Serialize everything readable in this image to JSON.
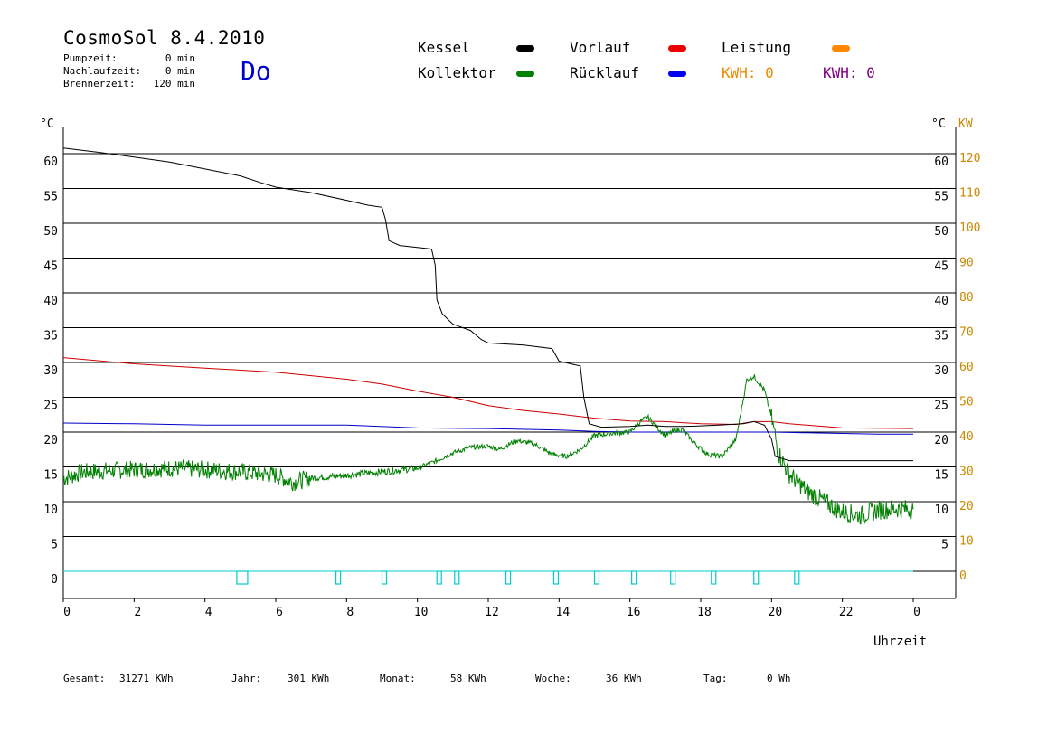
{
  "header": {
    "title": "CosmoSol 8.4.2010",
    "day": "Do",
    "info": [
      {
        "label": "Pumpzeit:",
        "value": "0 min"
      },
      {
        "label": "Nachlaufzeit:",
        "value": "0 min"
      },
      {
        "label": "Brennerzeit:",
        "value": "120 min"
      }
    ]
  },
  "legend": {
    "kessel": "Kessel",
    "vorlauf": "Vorlauf",
    "leistung": "Leistung",
    "kollektor": "Kollektor",
    "ruecklauf": "Rücklauf",
    "kwh1": "KWH: 0",
    "kwh2": "KWH: 0"
  },
  "footer": {
    "gesamt_label": "Gesamt:",
    "gesamt_value": "31271 KWh",
    "jahr_label": "Jahr:",
    "jahr_value": "301 KWh",
    "monat_label": "Monat:",
    "monat_value": "58 KWh",
    "woche_label": "Woche:",
    "woche_value": "36 KWh",
    "tag_label": "Tag:",
    "tag_value": "0 Wh"
  },
  "chart_data": {
    "type": "line",
    "xlabel": "Uhrzeit",
    "ylabel_left": "°C",
    "ylabel_right_1": "°C",
    "ylabel_right_2": "KW",
    "ylim": [
      0,
      60
    ],
    "xlim": [
      0,
      24
    ],
    "x_tick_labels": [
      "0",
      "2",
      "4",
      "6",
      "8",
      "10",
      "12",
      "14",
      "16",
      "18",
      "20",
      "22",
      "0"
    ],
    "y_ticks": [
      0,
      5,
      10,
      15,
      20,
      25,
      30,
      35,
      40,
      45,
      50,
      55,
      60
    ],
    "y_tick_labels": [
      "0",
      "5",
      "10",
      "15",
      "20",
      "25",
      "30",
      "35",
      "40",
      "45",
      "50",
      "55",
      "60"
    ],
    "right_c_tick_labels": [
      "",
      "5",
      "10",
      "15",
      "20",
      "25",
      "30",
      "35",
      "40",
      "45",
      "50",
      "55",
      "60"
    ],
    "right_kw_tick_labels": [
      "0",
      "10",
      "20",
      "30",
      "40",
      "50",
      "60",
      "70",
      "80",
      "90",
      "100",
      "110",
      "120"
    ],
    "grid": true,
    "colors": {
      "kessel": "#000000",
      "kollektor": "#008000",
      "vorlauf": "#cc0000",
      "ruecklauf": "#0000cc",
      "leistung": "#ff8000",
      "pump": "#00cccc",
      "kwh2": "#800080",
      "kw_axis": "#cc8800"
    },
    "series": [
      {
        "name": "Kessel",
        "points": [
          [
            0,
            60.8
          ],
          [
            1,
            60.2
          ],
          [
            2,
            59.5
          ],
          [
            3,
            58.8
          ],
          [
            4,
            57.8
          ],
          [
            5,
            56.8
          ],
          [
            5.6,
            55.8
          ],
          [
            6,
            55.2
          ],
          [
            7,
            54.4
          ],
          [
            8,
            53.3
          ],
          [
            8.6,
            52.6
          ],
          [
            9,
            52.3
          ],
          [
            9.1,
            50.5
          ],
          [
            9.2,
            47.5
          ],
          [
            9.5,
            46.8
          ],
          [
            10.4,
            46.3
          ],
          [
            10.5,
            44
          ],
          [
            10.55,
            39
          ],
          [
            10.7,
            37
          ],
          [
            11,
            35.5
          ],
          [
            11.5,
            34.6
          ],
          [
            11.8,
            33.3
          ],
          [
            12,
            32.8
          ],
          [
            13,
            32.5
          ],
          [
            13.8,
            32
          ],
          [
            14.0,
            30.2
          ],
          [
            14.6,
            29.5
          ],
          [
            14.7,
            25
          ],
          [
            14.85,
            21.2
          ],
          [
            15.2,
            20.7
          ],
          [
            16,
            20.8
          ],
          [
            16.5,
            21
          ],
          [
            17,
            20.8
          ],
          [
            17.5,
            20.8
          ],
          [
            18,
            20.9
          ],
          [
            18.5,
            21
          ],
          [
            19.2,
            21.2
          ],
          [
            19.5,
            21.5
          ],
          [
            19.8,
            21
          ],
          [
            20,
            19
          ],
          [
            20.1,
            16.5
          ],
          [
            20.5,
            15.9
          ],
          [
            21.5,
            15.9
          ],
          [
            22.5,
            15.9
          ],
          [
            24,
            15.9
          ]
        ]
      },
      {
        "name": "Vorlauf",
        "points": [
          [
            0,
            30.7
          ],
          [
            2,
            29.8
          ],
          [
            4,
            29.2
          ],
          [
            6,
            28.6
          ],
          [
            8,
            27.6
          ],
          [
            9,
            26.9
          ],
          [
            10,
            25.9
          ],
          [
            11,
            25
          ],
          [
            12,
            23.8
          ],
          [
            13,
            23.1
          ],
          [
            14,
            22.6
          ],
          [
            15,
            22
          ],
          [
            16,
            21.6
          ],
          [
            17,
            21.5
          ],
          [
            18,
            21.2
          ],
          [
            19,
            21.1
          ],
          [
            19.5,
            21.5
          ],
          [
            20,
            21.5
          ],
          [
            20.5,
            21.2
          ],
          [
            21,
            21
          ],
          [
            22,
            20.6
          ],
          [
            24,
            20.5
          ]
        ]
      },
      {
        "name": "Rücklauf",
        "points": [
          [
            0,
            21.3
          ],
          [
            2,
            21.2
          ],
          [
            4,
            21
          ],
          [
            6,
            21
          ],
          [
            8,
            21
          ],
          [
            10,
            20.6
          ],
          [
            12,
            20.5
          ],
          [
            14,
            20.3
          ],
          [
            15,
            20.1
          ],
          [
            16,
            20
          ],
          [
            18,
            20
          ],
          [
            20,
            20
          ],
          [
            21,
            19.9
          ],
          [
            22,
            19.8
          ],
          [
            23,
            19.7
          ],
          [
            24,
            19.7
          ]
        ]
      },
      {
        "name": "Kollektor",
        "points": [
          [
            0,
            13.3
          ],
          [
            0.5,
            14.2
          ],
          [
            1,
            14.4
          ],
          [
            2,
            14.6
          ],
          [
            3,
            14.8
          ],
          [
            4,
            14.6
          ],
          [
            5,
            14.3
          ],
          [
            6,
            13.8
          ],
          [
            6.5,
            12.8
          ],
          [
            7,
            13.4
          ],
          [
            8,
            13.8
          ],
          [
            9,
            14.3
          ],
          [
            10,
            14.8
          ],
          [
            10.5,
            15.8
          ],
          [
            11,
            17
          ],
          [
            11.5,
            17.8
          ],
          [
            12,
            18
          ],
          [
            12.3,
            17.5
          ],
          [
            12.8,
            18.8
          ],
          [
            13.3,
            18.3
          ],
          [
            13.8,
            16.8
          ],
          [
            14.2,
            16.5
          ],
          [
            14.6,
            17.5
          ],
          [
            15,
            19.5
          ],
          [
            15.5,
            19.8
          ],
          [
            16,
            20
          ],
          [
            16.3,
            21.5
          ],
          [
            16.5,
            22.2
          ],
          [
            16.8,
            20.5
          ],
          [
            17,
            19.5
          ],
          [
            17.3,
            20.3
          ],
          [
            17.5,
            20.3
          ],
          [
            17.8,
            18.5
          ],
          [
            18.2,
            16.8
          ],
          [
            18.6,
            16.5
          ],
          [
            19,
            19
          ],
          [
            19.3,
            27.5
          ],
          [
            19.5,
            28
          ],
          [
            19.8,
            26
          ],
          [
            20,
            22
          ],
          [
            20.2,
            17
          ],
          [
            20.5,
            14
          ],
          [
            21,
            11.5
          ],
          [
            21.5,
            10
          ],
          [
            22,
            8.5
          ],
          [
            22.5,
            8
          ],
          [
            23,
            8.8
          ],
          [
            23.5,
            9
          ],
          [
            24,
            8.9
          ]
        ]
      }
    ],
    "pump_on_hours": [
      4.9,
      7.7,
      9.0,
      10.55,
      11.05,
      12.5,
      13.85,
      15.0,
      16.05,
      17.15,
      18.3,
      19.5,
      20.65
    ]
  }
}
